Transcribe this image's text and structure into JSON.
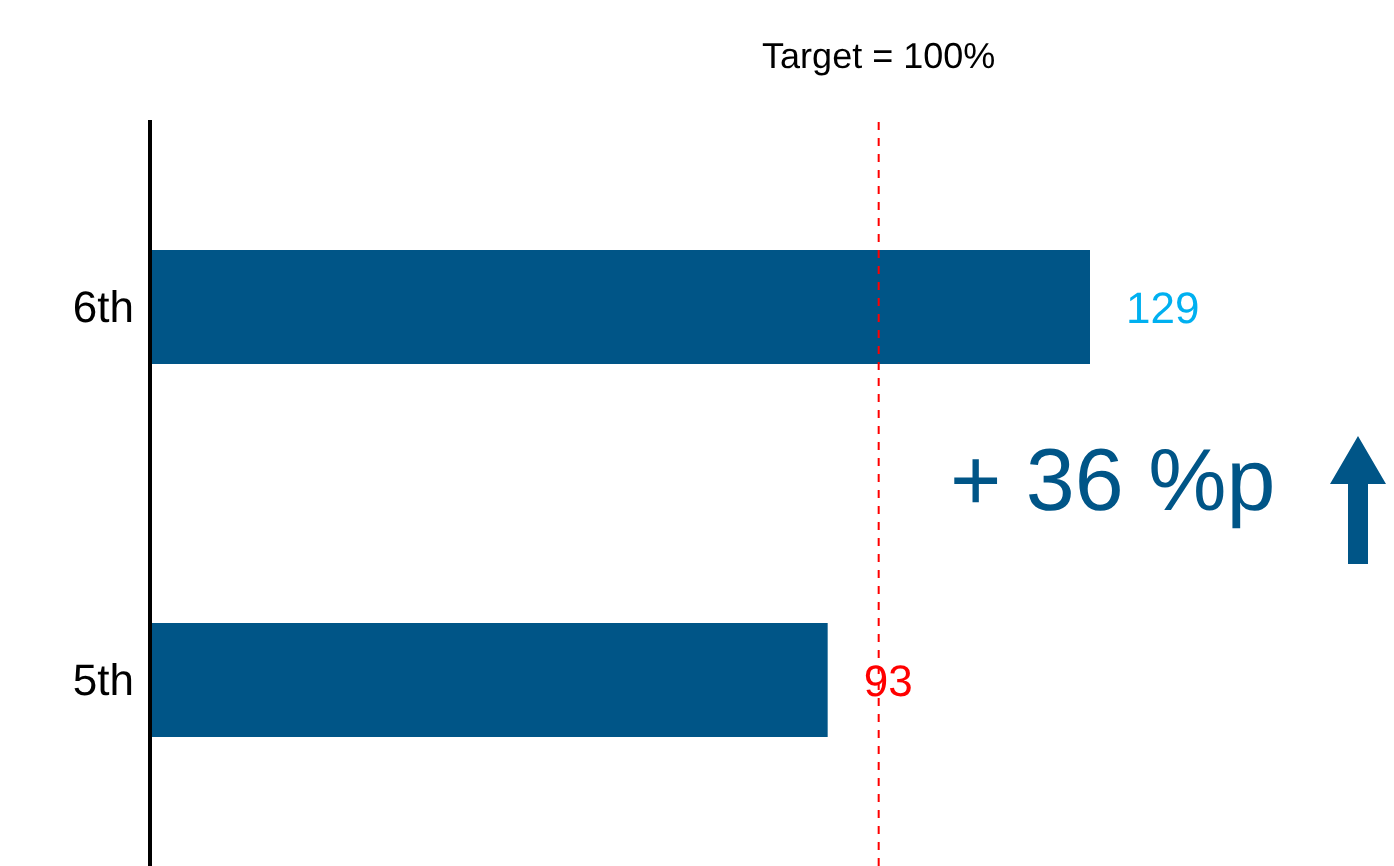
{
  "chart_data": {
    "type": "bar",
    "orientation": "horizontal",
    "categories": [
      "6th",
      "5th"
    ],
    "values": [
      129,
      93
    ],
    "color": "#005587",
    "data_labels": true,
    "tick_labels": "y",
    "grid": false,
    "legend": false,
    "ref_lines": [
      {
        "axis": "x",
        "value": 100,
        "label": "Target = 100%",
        "color": "#ff0000",
        "line_style": "dashed"
      }
    ],
    "annotations": [
      "+ 36 %p"
    ]
  }
}
